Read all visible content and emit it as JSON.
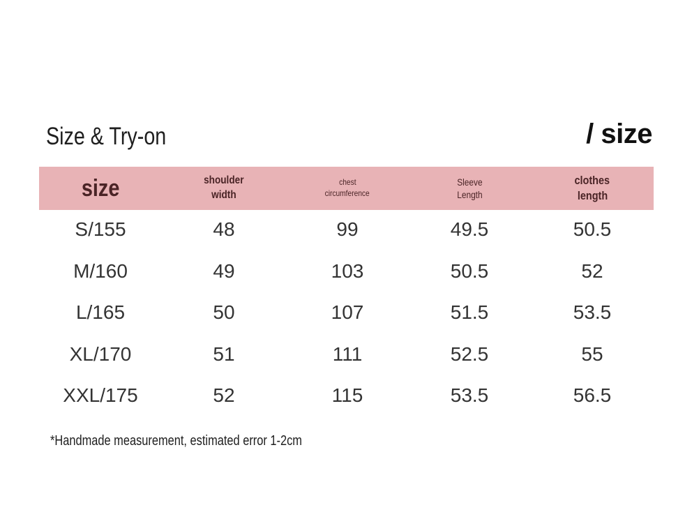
{
  "title": "Size & Try-on",
  "brand": "/ size",
  "colors": {
    "header_bg": "#e8b3b6",
    "header_text": "#4a2426",
    "cell_text": "#333333"
  },
  "table": {
    "headers": [
      {
        "line1": "size",
        "line2": ""
      },
      {
        "line1": "shoulder",
        "line2": "width"
      },
      {
        "line1": "chest",
        "line2": "circumference"
      },
      {
        "line1": "Sleeve",
        "line2": "Length"
      },
      {
        "line1": "clothes",
        "line2": "length"
      }
    ],
    "rows": [
      [
        "S/155",
        "48",
        "99",
        "49.5",
        "50.5"
      ],
      [
        "M/160",
        "49",
        "103",
        "50.5",
        "52"
      ],
      [
        "L/165",
        "50",
        "107",
        "51.5",
        "53.5"
      ],
      [
        "XL/170",
        "51",
        "111",
        "52.5",
        "55"
      ],
      [
        "XXL/175",
        "52",
        "115",
        "53.5",
        "56.5"
      ]
    ]
  },
  "footnote": "*Handmade measurement, estimated error 1-2cm"
}
